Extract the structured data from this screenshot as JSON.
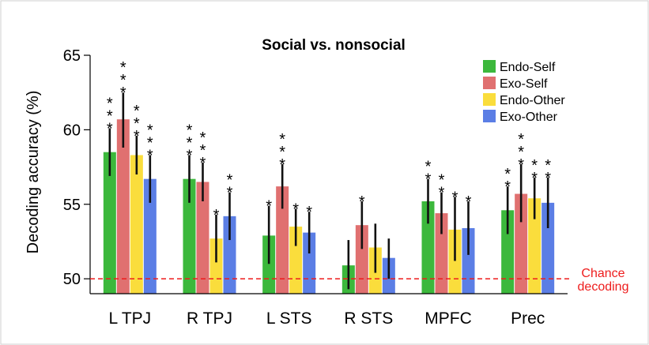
{
  "chart_data": {
    "type": "bar",
    "title": "Social vs. nonsocial",
    "ylabel": "Decoding accuracy (%)",
    "xlabel": "",
    "ylim": [
      49,
      65
    ],
    "yticks": [
      50,
      55,
      60,
      65
    ],
    "categories": [
      "L TPJ",
      "R TPJ",
      "L STS",
      "R STS",
      "MPFC",
      "Prec"
    ],
    "legend_position": "top-right",
    "series": [
      {
        "name": "Endo-Self",
        "color": "#3cb83c",
        "values": [
          58.5,
          56.7,
          52.9,
          50.9,
          55.2,
          54.6
        ],
        "error": [
          [
            56.9,
            60.1
          ],
          [
            55.1,
            58.3
          ],
          [
            51.0,
            54.9
          ],
          [
            49.3,
            52.6
          ],
          [
            53.7,
            56.7
          ],
          [
            53.0,
            56.2
          ]
        ],
        "significance": [
          "***",
          "***",
          "*",
          "",
          "**",
          "**"
        ]
      },
      {
        "name": "Exo-Self",
        "color": "#e07070",
        "values": [
          60.7,
          56.5,
          56.2,
          53.6,
          54.4,
          55.7
        ],
        "error": [
          [
            58.8,
            62.5
          ],
          [
            55.2,
            57.8
          ],
          [
            54.7,
            57.7
          ],
          [
            52.0,
            55.2
          ],
          [
            53.0,
            55.8
          ],
          [
            53.8,
            57.7
          ]
        ],
        "significance": [
          "***",
          "***",
          "***",
          "*",
          "**",
          "***"
        ]
      },
      {
        "name": "Endo-Other",
        "color": "#fadd3c",
        "values": [
          58.3,
          52.7,
          53.5,
          52.1,
          53.3,
          55.4
        ],
        "error": [
          [
            57.0,
            59.6
          ],
          [
            51.1,
            54.3
          ],
          [
            52.2,
            54.7
          ],
          [
            50.4,
            53.7
          ],
          [
            51.2,
            55.5
          ],
          [
            54.0,
            56.8
          ]
        ],
        "significance": [
          "***",
          "*",
          "*",
          "",
          "*",
          "**"
        ]
      },
      {
        "name": "Exo-Other",
        "color": "#5b7ee5",
        "values": [
          56.7,
          54.2,
          53.1,
          51.4,
          53.4,
          55.1
        ],
        "error": [
          [
            55.1,
            58.3
          ],
          [
            52.6,
            55.8
          ],
          [
            51.7,
            54.5
          ],
          [
            50.0,
            52.7
          ],
          [
            51.6,
            55.2
          ],
          [
            53.4,
            56.8
          ]
        ],
        "significance": [
          "***",
          "**",
          "*",
          "",
          "*",
          "**"
        ]
      }
    ],
    "reference_line": {
      "value": 50,
      "color": "#ee1c1c",
      "style": "dashed",
      "label_lines": [
        "Chance",
        "decoding"
      ]
    }
  }
}
